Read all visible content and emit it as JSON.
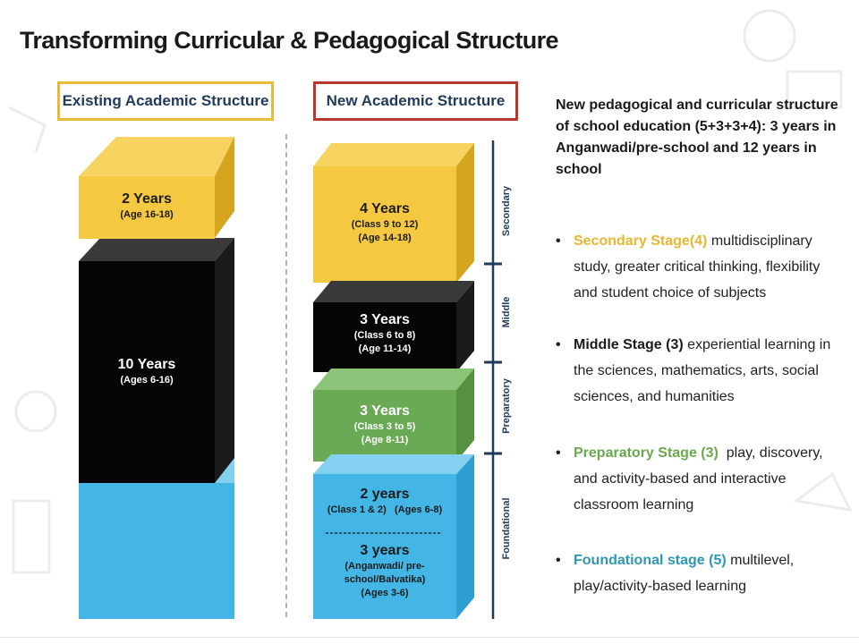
{
  "title": "Transforming Curricular & Pedagogical Structure",
  "existing": {
    "header": "Existing Academic Structure",
    "blocks": [
      {
        "years": "2 Years",
        "detail": "(Age 16-18)"
      },
      {
        "years": "10 Years",
        "detail": "(Ages 6-16)"
      }
    ]
  },
  "new": {
    "header": "New Academic Structure",
    "blocks": [
      {
        "years": "4 Years",
        "line1": "(Class 9 to 12)",
        "line2": "(Age 14-18)"
      },
      {
        "years": "3 Years",
        "line1": "(Class 6 to 8)",
        "line2": "(Age 11-14)"
      },
      {
        "years": "3 Years",
        "line1": "(Class 3 to 5)",
        "line2": "(Age 8-11)"
      },
      {
        "years": "2 years",
        "line1": "(Class 1 & 2)   (Ages 6-8)"
      },
      {
        "years": "3 years",
        "line1": "(Anganwadi/ pre-",
        "line2": "school/Balvatika)",
        "line3": "(Ages 3-6)"
      }
    ],
    "stages": [
      "Secondary",
      "Middle",
      "Preparatory",
      "Foundational"
    ]
  },
  "description": {
    "title": "New pedagogical and curricular structure of school education (5+3+3+4): 3 years in Anganwadi/pre-school and 12 years in school",
    "bullets": [
      {
        "highlight": "Secondary Stage(4)",
        "text": " multidisciplinary study, greater critical thinking, flexibility and student choice of subjects",
        "color": "#e8b730"
      },
      {
        "highlight": "Middle Stage (3)",
        "text": " experiential learning in the sciences, mathematics, arts, social sciences, and humanities",
        "color": "#1b1b1b"
      },
      {
        "highlight": "Preparatory Stage (3)",
        "text": "  play, discovery, and activity-based and interactive classroom learning",
        "color": "#6aa84f"
      },
      {
        "highlight": "Foundational stage (5)",
        "text": " multilevel, play/activity-based learning",
        "color": "#2e97b8"
      }
    ]
  },
  "colors": {
    "yellow": "#f5c842",
    "black": "#050505",
    "green": "#6aaa55",
    "blue": "#44b6e6",
    "header_existing_border": "#e8bb36",
    "header_new_border": "#b53a2e",
    "timeline": "#1f3a5a"
  }
}
